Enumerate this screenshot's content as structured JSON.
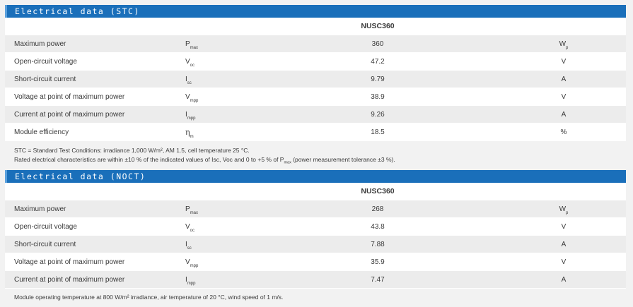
{
  "stc": {
    "title": "Electrical data (STC)",
    "model": "NUSC360",
    "rows": [
      {
        "label": "Maximum power",
        "sym": "P",
        "sub": "max",
        "value": "360",
        "unit": "W",
        "unit_sub": "p"
      },
      {
        "label": "Open-circuit voltage",
        "sym": "V",
        "sub": "oc",
        "value": "47.2",
        "unit": "V",
        "unit_sub": ""
      },
      {
        "label": "Short-circuit current",
        "sym": "I",
        "sub": "sc",
        "value": "9.79",
        "unit": "A",
        "unit_sub": ""
      },
      {
        "label": "Voltage at point of maximum power",
        "sym": "V",
        "sub": "mpp",
        "value": "38.9",
        "unit": "V",
        "unit_sub": ""
      },
      {
        "label": "Current at point of maximum power",
        "sym": "I",
        "sub": "mpp",
        "value": "9.26",
        "unit": "A",
        "unit_sub": ""
      },
      {
        "label": "Module efficiency",
        "sym": "η",
        "sub": "m",
        "value": "18.5",
        "unit": "%",
        "unit_sub": ""
      }
    ],
    "note_line1": "STC = Standard Test Conditions: irradiance 1,000 W/m², AM 1.5, cell temperature 25 °C.",
    "note_line2_a": "Rated electrical characteristics are within ±10 % of the indicated values of Isc, Voc and 0 to +5 % of P",
    "note_line2_sub": "max",
    "note_line2_b": " (power measurement tolerance ±3 %)."
  },
  "noct": {
    "title": "Electrical data (NOCT)",
    "model": "NUSC360",
    "rows": [
      {
        "label": "Maximum power",
        "sym": "P",
        "sub": "max",
        "value": "268",
        "unit": "W",
        "unit_sub": "p"
      },
      {
        "label": "Open-circuit voltage",
        "sym": "V",
        "sub": "oc",
        "value": "43.8",
        "unit": "V",
        "unit_sub": ""
      },
      {
        "label": "Short-circuit current",
        "sym": "I",
        "sub": "sc",
        "value": "7.88",
        "unit": "A",
        "unit_sub": ""
      },
      {
        "label": "Voltage at point of maximum power",
        "sym": "V",
        "sub": "mpp",
        "value": "35.9",
        "unit": "V",
        "unit_sub": ""
      },
      {
        "label": "Current at point of maximum power",
        "sym": "I",
        "sub": "mpp",
        "value": "7.47",
        "unit": "A",
        "unit_sub": ""
      }
    ],
    "note": "Module operating temperature at 800 W/m² irradiance, air temperature of 20 °C, wind speed of 1 m/s."
  },
  "colors": {
    "header_blue": "#1a6fba",
    "row_grey": "#ececec",
    "row_white": "#ffffff"
  }
}
